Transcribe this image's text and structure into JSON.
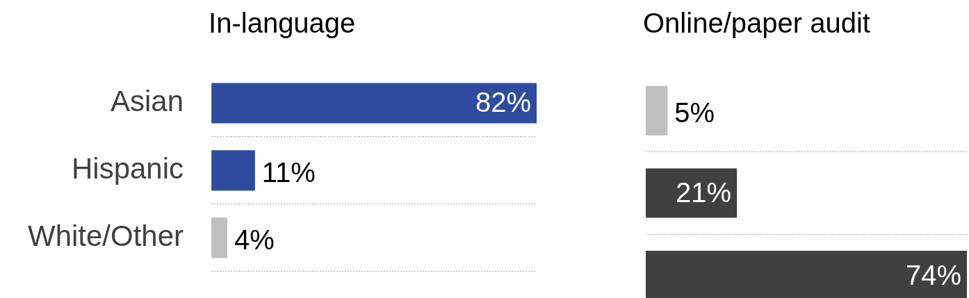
{
  "chart_data": [
    {
      "type": "bar",
      "title": "In-language",
      "orientation": "horizontal",
      "categories": [
        "Asian",
        "Hispanic",
        "White/Other"
      ],
      "values": [
        82,
        11,
        4
      ],
      "colors": [
        "#2f4b9f",
        "#2f4b9f",
        "#bfbfbf"
      ],
      "value_labels": [
        "82%",
        "11%",
        "4%"
      ],
      "grid": "y",
      "tick_labels": "y"
    },
    {
      "type": "bar",
      "title": "Online/paper audit",
      "orientation": "horizontal",
      "categories": [
        null,
        null,
        null
      ],
      "values": [
        5,
        21,
        74
      ],
      "colors": [
        "#bfbfbf",
        "#404040",
        "#404040"
      ],
      "value_labels": [
        "5%",
        "21%",
        "74%"
      ],
      "grid": "y",
      "tick_labels": false
    }
  ]
}
